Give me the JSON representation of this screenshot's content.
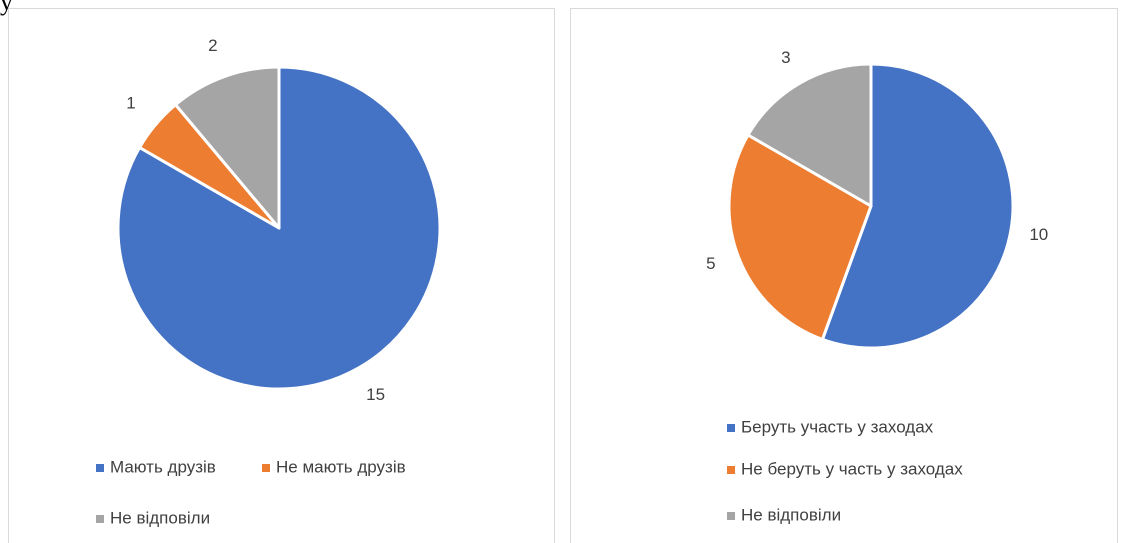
{
  "page_text": "у",
  "chart_data": [
    {
      "type": "pie",
      "categories": [
        "Мають друзів",
        "Не мають друзів",
        "Не відповіли"
      ],
      "values": [
        15,
        1,
        2
      ],
      "colors": [
        "#4472c4",
        "#ed7d31",
        "#a5a5a5"
      ],
      "legend": "bottom"
    },
    {
      "type": "pie",
      "categories": [
        "Беруть участь у заходах",
        "Не беруть у часть у заходах",
        "Не відповіли"
      ],
      "values": [
        10,
        5,
        3
      ],
      "colors": [
        "#4472c4",
        "#ed7d31",
        "#a5a5a5"
      ],
      "legend": "bottom"
    }
  ]
}
